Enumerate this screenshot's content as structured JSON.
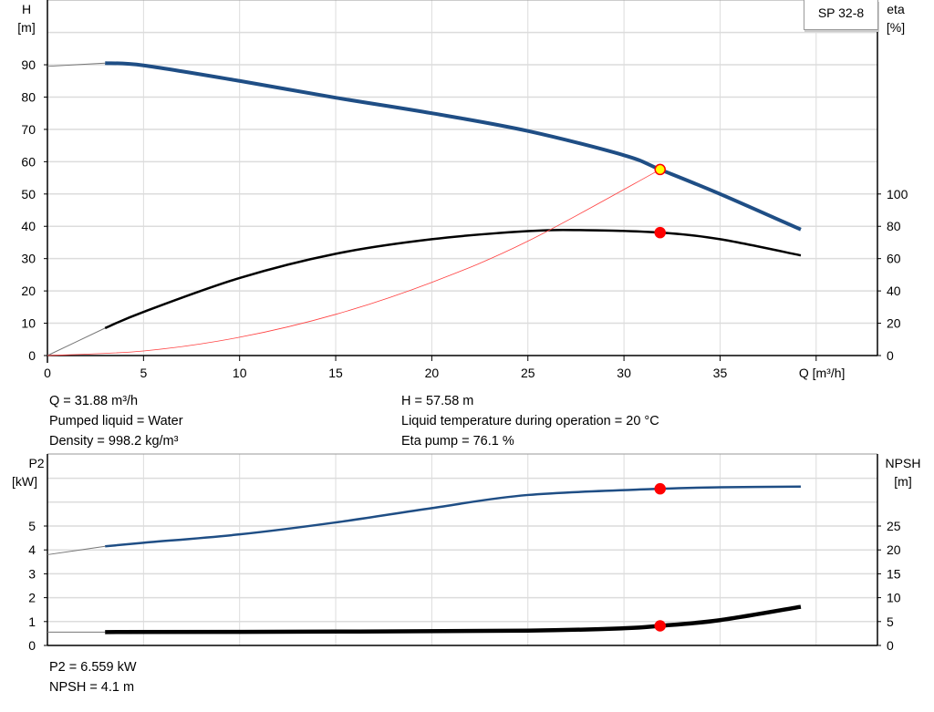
{
  "chart_data": [
    {
      "type": "line",
      "title": "SP 32-8",
      "x": {
        "label": "Q [m³/h]",
        "range": [
          0,
          42
        ],
        "ticks": [
          0,
          5,
          10,
          15,
          20,
          25,
          30,
          35
        ]
      },
      "y_left": {
        "label": "H",
        "unit": "[m]",
        "range": [
          0,
          100
        ],
        "ticks": [
          0,
          10,
          20,
          30,
          40,
          50,
          60,
          70,
          80,
          90
        ]
      },
      "y_right": {
        "label": "eta",
        "unit": "[%]",
        "range": [
          0,
          200
        ],
        "ticks": [
          0,
          20,
          40,
          60,
          80,
          100
        ]
      },
      "grid": true,
      "series": [
        {
          "id": "head",
          "axis": "left",
          "color": "#1f4e85",
          "points": [
            [
              0,
              89.5
            ],
            [
              3,
              90.5
            ],
            [
              5,
              89.8
            ],
            [
              10,
              85
            ],
            [
              15,
              79.8
            ],
            [
              20,
              75
            ],
            [
              25,
              69.5
            ],
            [
              30,
              62
            ],
            [
              31.88,
              57.58
            ],
            [
              35,
              50
            ],
            [
              39.2,
              39
            ]
          ]
        },
        {
          "id": "efficiency",
          "axis": "right",
          "color": "#000000",
          "points": [
            [
              0,
              0
            ],
            [
              3,
              17
            ],
            [
              5,
              27
            ],
            [
              10,
              48
            ],
            [
              15,
              63
            ],
            [
              20,
              72
            ],
            [
              25,
              77
            ],
            [
              28,
              77.6
            ],
            [
              31.88,
              76.1
            ],
            [
              35,
              72
            ],
            [
              39.2,
              62
            ]
          ]
        },
        {
          "id": "system-curve",
          "axis": "left",
          "color": "#ff4040",
          "points": [
            [
              0,
              0
            ],
            [
              5,
              1.42
            ],
            [
              10,
              5.67
            ],
            [
              15,
              12.75
            ],
            [
              20,
              22.66
            ],
            [
              25,
              35.4
            ],
            [
              31.88,
              57.58
            ]
          ]
        }
      ],
      "operating_points": [
        {
          "series": "head",
          "x": 31.88,
          "y": 57.58,
          "color": "#ffff00"
        },
        {
          "series": "efficiency",
          "x": 31.88,
          "y": 76.1,
          "color": "#ff0000"
        }
      ]
    },
    {
      "type": "line",
      "x": {
        "range": [
          0,
          42
        ]
      },
      "y_left": {
        "label": "P2",
        "unit": "[kW]",
        "range": [
          0,
          8
        ],
        "ticks": [
          0,
          1,
          2,
          3,
          4,
          5
        ]
      },
      "y_right": {
        "label": "NPSH",
        "unit": "[m]",
        "range": [
          0,
          40
        ],
        "ticks": [
          0,
          5,
          10,
          15,
          20,
          25
        ]
      },
      "grid": true,
      "series": [
        {
          "id": "p2",
          "axis": "left",
          "color": "#1f4e85",
          "points": [
            [
              0,
              3.8
            ],
            [
              3,
              4.15
            ],
            [
              5,
              4.3
            ],
            [
              10,
              4.65
            ],
            [
              15,
              5.15
            ],
            [
              20,
              5.75
            ],
            [
              25,
              6.3
            ],
            [
              31.88,
              6.559
            ],
            [
              35,
              6.62
            ],
            [
              39.2,
              6.65
            ]
          ]
        },
        {
          "id": "npsh",
          "axis": "right",
          "color": "#000000",
          "points": [
            [
              0,
              2.8
            ],
            [
              3,
              2.8
            ],
            [
              15,
              2.9
            ],
            [
              25,
              3.1
            ],
            [
              30,
              3.6
            ],
            [
              31.88,
              4.1
            ],
            [
              35,
              5.3
            ],
            [
              39.2,
              8.1
            ]
          ]
        }
      ],
      "operating_points": [
        {
          "series": "p2",
          "x": 31.88,
          "y": 6.559,
          "color": "#ff0000"
        },
        {
          "series": "npsh",
          "x": 31.88,
          "y": 4.1,
          "color": "#ff0000"
        }
      ]
    }
  ],
  "info_top": {
    "col1": [
      "Q = 31.88 m³/h",
      "Pumped liquid = Water",
      "Density = 998.2 kg/m³"
    ],
    "col2": [
      "H = 57.58 m",
      "Liquid temperature during operation = 20 °C",
      "Eta pump = 76.1 %"
    ]
  },
  "info_bottom": [
    "P2 = 6.559 kW",
    "NPSH = 4.1 m"
  ]
}
